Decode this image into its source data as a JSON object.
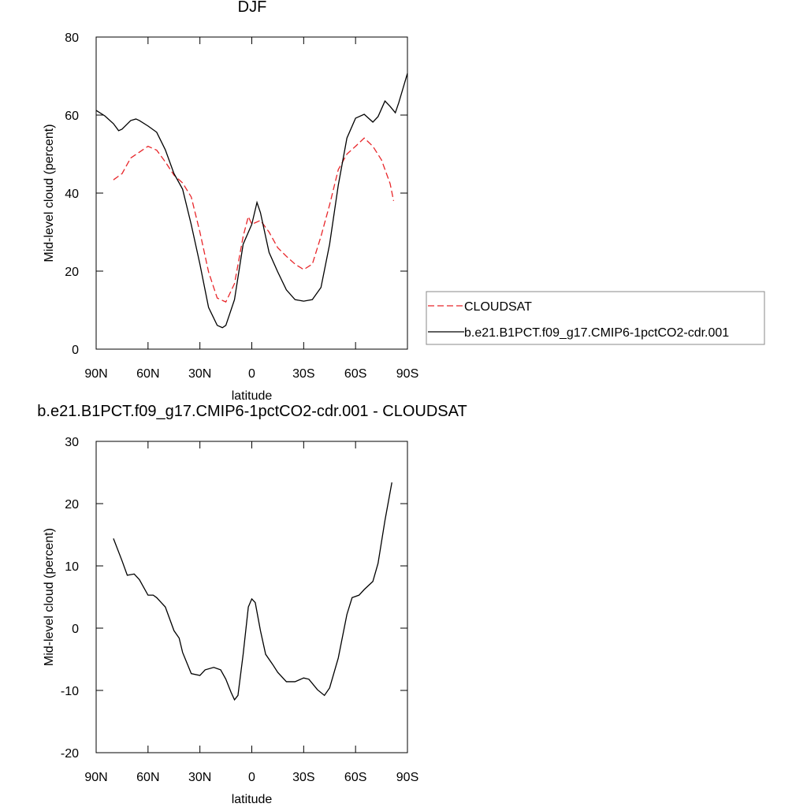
{
  "chart_data": [
    {
      "type": "line",
      "title": "DJF",
      "xlabel": "latitude",
      "ylabel": "Mid-level cloud (percent)",
      "xlim": [
        90,
        -90
      ],
      "xticks": [
        {
          "value": 90,
          "label": "90N"
        },
        {
          "value": 60,
          "label": "60N"
        },
        {
          "value": 30,
          "label": "30N"
        },
        0,
        {
          "value": -30,
          "label": "30S"
        },
        {
          "value": -60,
          "label": "60S"
        },
        {
          "value": -90,
          "label": "90S"
        }
      ],
      "ylim": [
        0,
        80
      ],
      "yticks": [
        0,
        20,
        40,
        60,
        80
      ],
      "legend": "right",
      "series": [
        {
          "name": "CLOUDSAT",
          "color": "#e8262a",
          "line_style": "dashed",
          "x": [
            80,
            75,
            70,
            65,
            60,
            55,
            50,
            45,
            40,
            35,
            30,
            25,
            20,
            15,
            10,
            5,
            2,
            0,
            -5,
            -10,
            -15,
            -20,
            -25,
            -30,
            -35,
            -40,
            -45,
            -50,
            -55,
            -60,
            -65,
            -70,
            -75,
            -80,
            -82
          ],
          "values": [
            43.4,
            45,
            49,
            50.5,
            52,
            51,
            48,
            44.6,
            42.6,
            39,
            30,
            19.8,
            13.1,
            12.1,
            16.8,
            28.9,
            34,
            32,
            33,
            30,
            26,
            23.8,
            21.8,
            20.4,
            21.8,
            28.9,
            37,
            46,
            50,
            52,
            54.1,
            52,
            48.5,
            42.4,
            38
          ]
        },
        {
          "name": "b.e21.B1PCT.f09_g17.CMIP6-1pctCO2-cdr.001",
          "color": "#000000",
          "line_style": "solid",
          "x": [
            90,
            85,
            80,
            77,
            75,
            70,
            67,
            65,
            60,
            55,
            50,
            45,
            40,
            35,
            30,
            25,
            20,
            17,
            15,
            10,
            5,
            0,
            -3,
            -5,
            -10,
            -15,
            -20,
            -25,
            -30,
            -35,
            -40,
            -45,
            -50,
            -55,
            -60,
            -65,
            -70,
            -73,
            -77,
            -80,
            -83,
            -85,
            -90
          ],
          "values": [
            61.2,
            59.8,
            57.8,
            56,
            56.4,
            58.6,
            59,
            58.6,
            57.2,
            55.6,
            51.1,
            45,
            41,
            31.9,
            21.8,
            10.7,
            6.1,
            5.5,
            6.1,
            12.7,
            26.9,
            32,
            37.6,
            35,
            24.8,
            19.8,
            15.2,
            12.7,
            12.3,
            12.7,
            15.8,
            26.9,
            42,
            54.1,
            59.2,
            60.2,
            58.2,
            59.6,
            63.6,
            62.2,
            60.6,
            63.2,
            70.7
          ]
        }
      ]
    },
    {
      "type": "line",
      "title": "b.e21.B1PCT.f09_g17.CMIP6-1pctCO2-cdr.001 - CLOUDSAT",
      "xlabel": "latitude",
      "ylabel": "Mid-level cloud (percent)",
      "xlim": [
        90,
        -90
      ],
      "xticks": [
        {
          "value": 90,
          "label": "90N"
        },
        {
          "value": 60,
          "label": "60N"
        },
        {
          "value": 30,
          "label": "30N"
        },
        0,
        {
          "value": -30,
          "label": "30S"
        },
        {
          "value": -60,
          "label": "60S"
        },
        {
          "value": -90,
          "label": "90S"
        }
      ],
      "ylim": [
        -20,
        30
      ],
      "yticks": [
        -20,
        -10,
        0,
        10,
        20,
        30
      ],
      "series": [
        {
          "color": "#000000",
          "line_style": "solid",
          "x": [
            80,
            75,
            72,
            68,
            65,
            60,
            57,
            55,
            50,
            45,
            42,
            40,
            35,
            30,
            27,
            22,
            18,
            15,
            12,
            10,
            8,
            5,
            2,
            0,
            -2,
            -5,
            -8,
            -12,
            -15,
            -20,
            -25,
            -30,
            -33,
            -38,
            -42,
            -45,
            -50,
            -55,
            -58,
            -62,
            -65,
            -70,
            -73,
            -77,
            -81
          ],
          "values": [
            14.4,
            10.8,
            8.5,
            8.7,
            7.8,
            5.3,
            5.3,
            4.9,
            3.4,
            -0.4,
            -1.6,
            -3.9,
            -7.3,
            -7.6,
            -6.7,
            -6.3,
            -6.7,
            -8.2,
            -10.3,
            -11.5,
            -10.8,
            -4.2,
            3.4,
            4.7,
            4.1,
            -0.4,
            -4.2,
            -5.8,
            -7.1,
            -8.6,
            -8.6,
            -8.0,
            -8.2,
            -9.9,
            -10.8,
            -9.6,
            -4.8,
            2.2,
            4.9,
            5.3,
            6.2,
            7.5,
            10.4,
            17.3,
            23.4
          ]
        }
      ]
    }
  ]
}
